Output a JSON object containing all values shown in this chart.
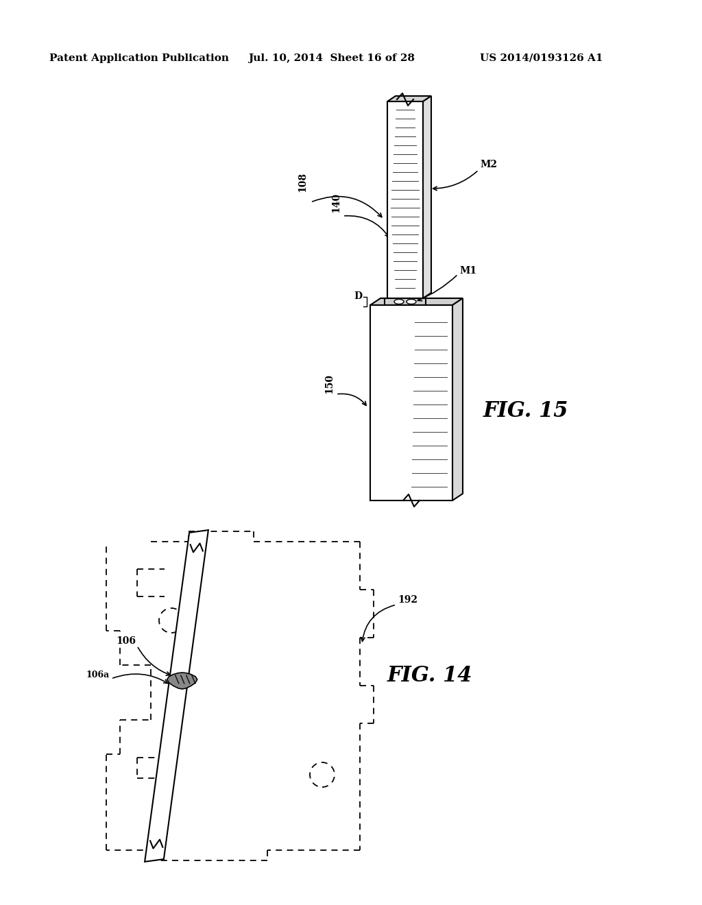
{
  "background_color": "#ffffff",
  "header_left": "Patent Application Publication",
  "header_mid": "Jul. 10, 2014  Sheet 16 of 28",
  "header_right": "US 2014/0193126 A1",
  "header_fontsize": 11,
  "line_color": "#000000",
  "text_color": "#000000"
}
